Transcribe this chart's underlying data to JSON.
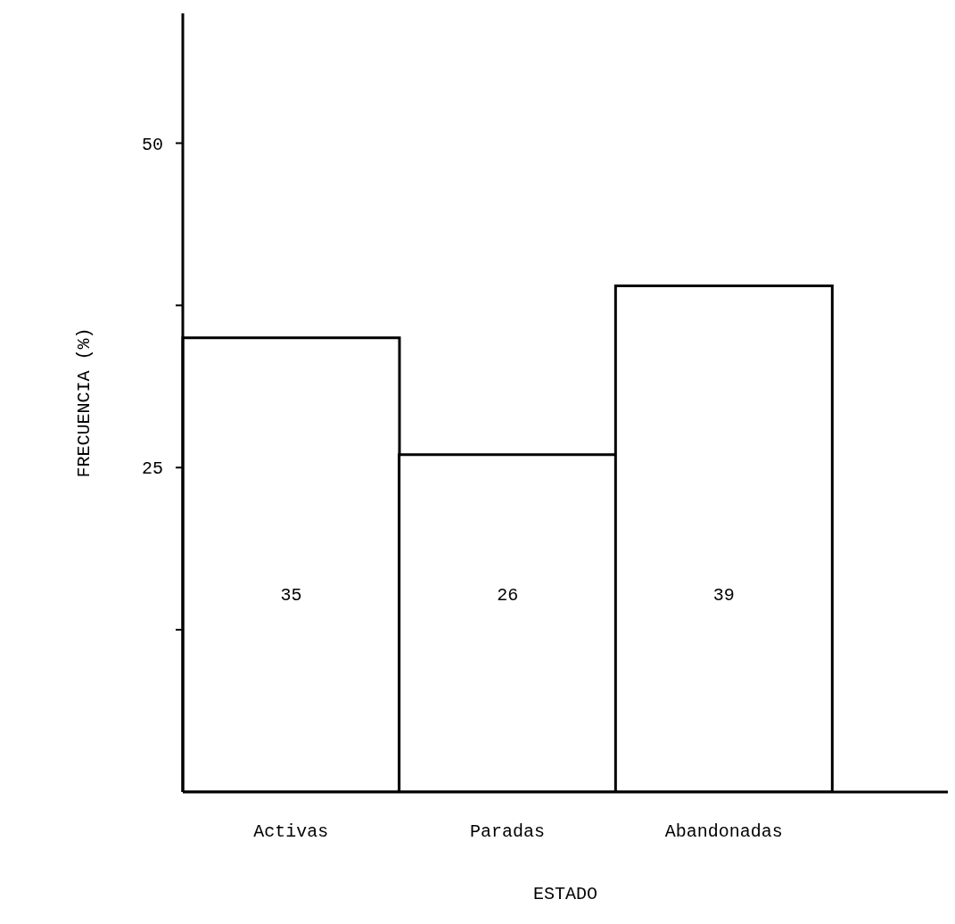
{
  "chart_data": {
    "type": "bar",
    "xlabel": "ESTADO",
    "ylabel": "FRECUENCIA (%)",
    "categories": [
      "Activas",
      "Paradas",
      "Abandonadas"
    ],
    "values": [
      35,
      26,
      39
    ],
    "color": "#ffffff",
    "ylim": [
      0,
      60
    ],
    "yticks": [
      {
        "value": 12.5,
        "label": null
      },
      25,
      {
        "value": 37.5,
        "label": null
      },
      50
    ],
    "data_labels": true,
    "grid": false,
    "legend": false
  }
}
